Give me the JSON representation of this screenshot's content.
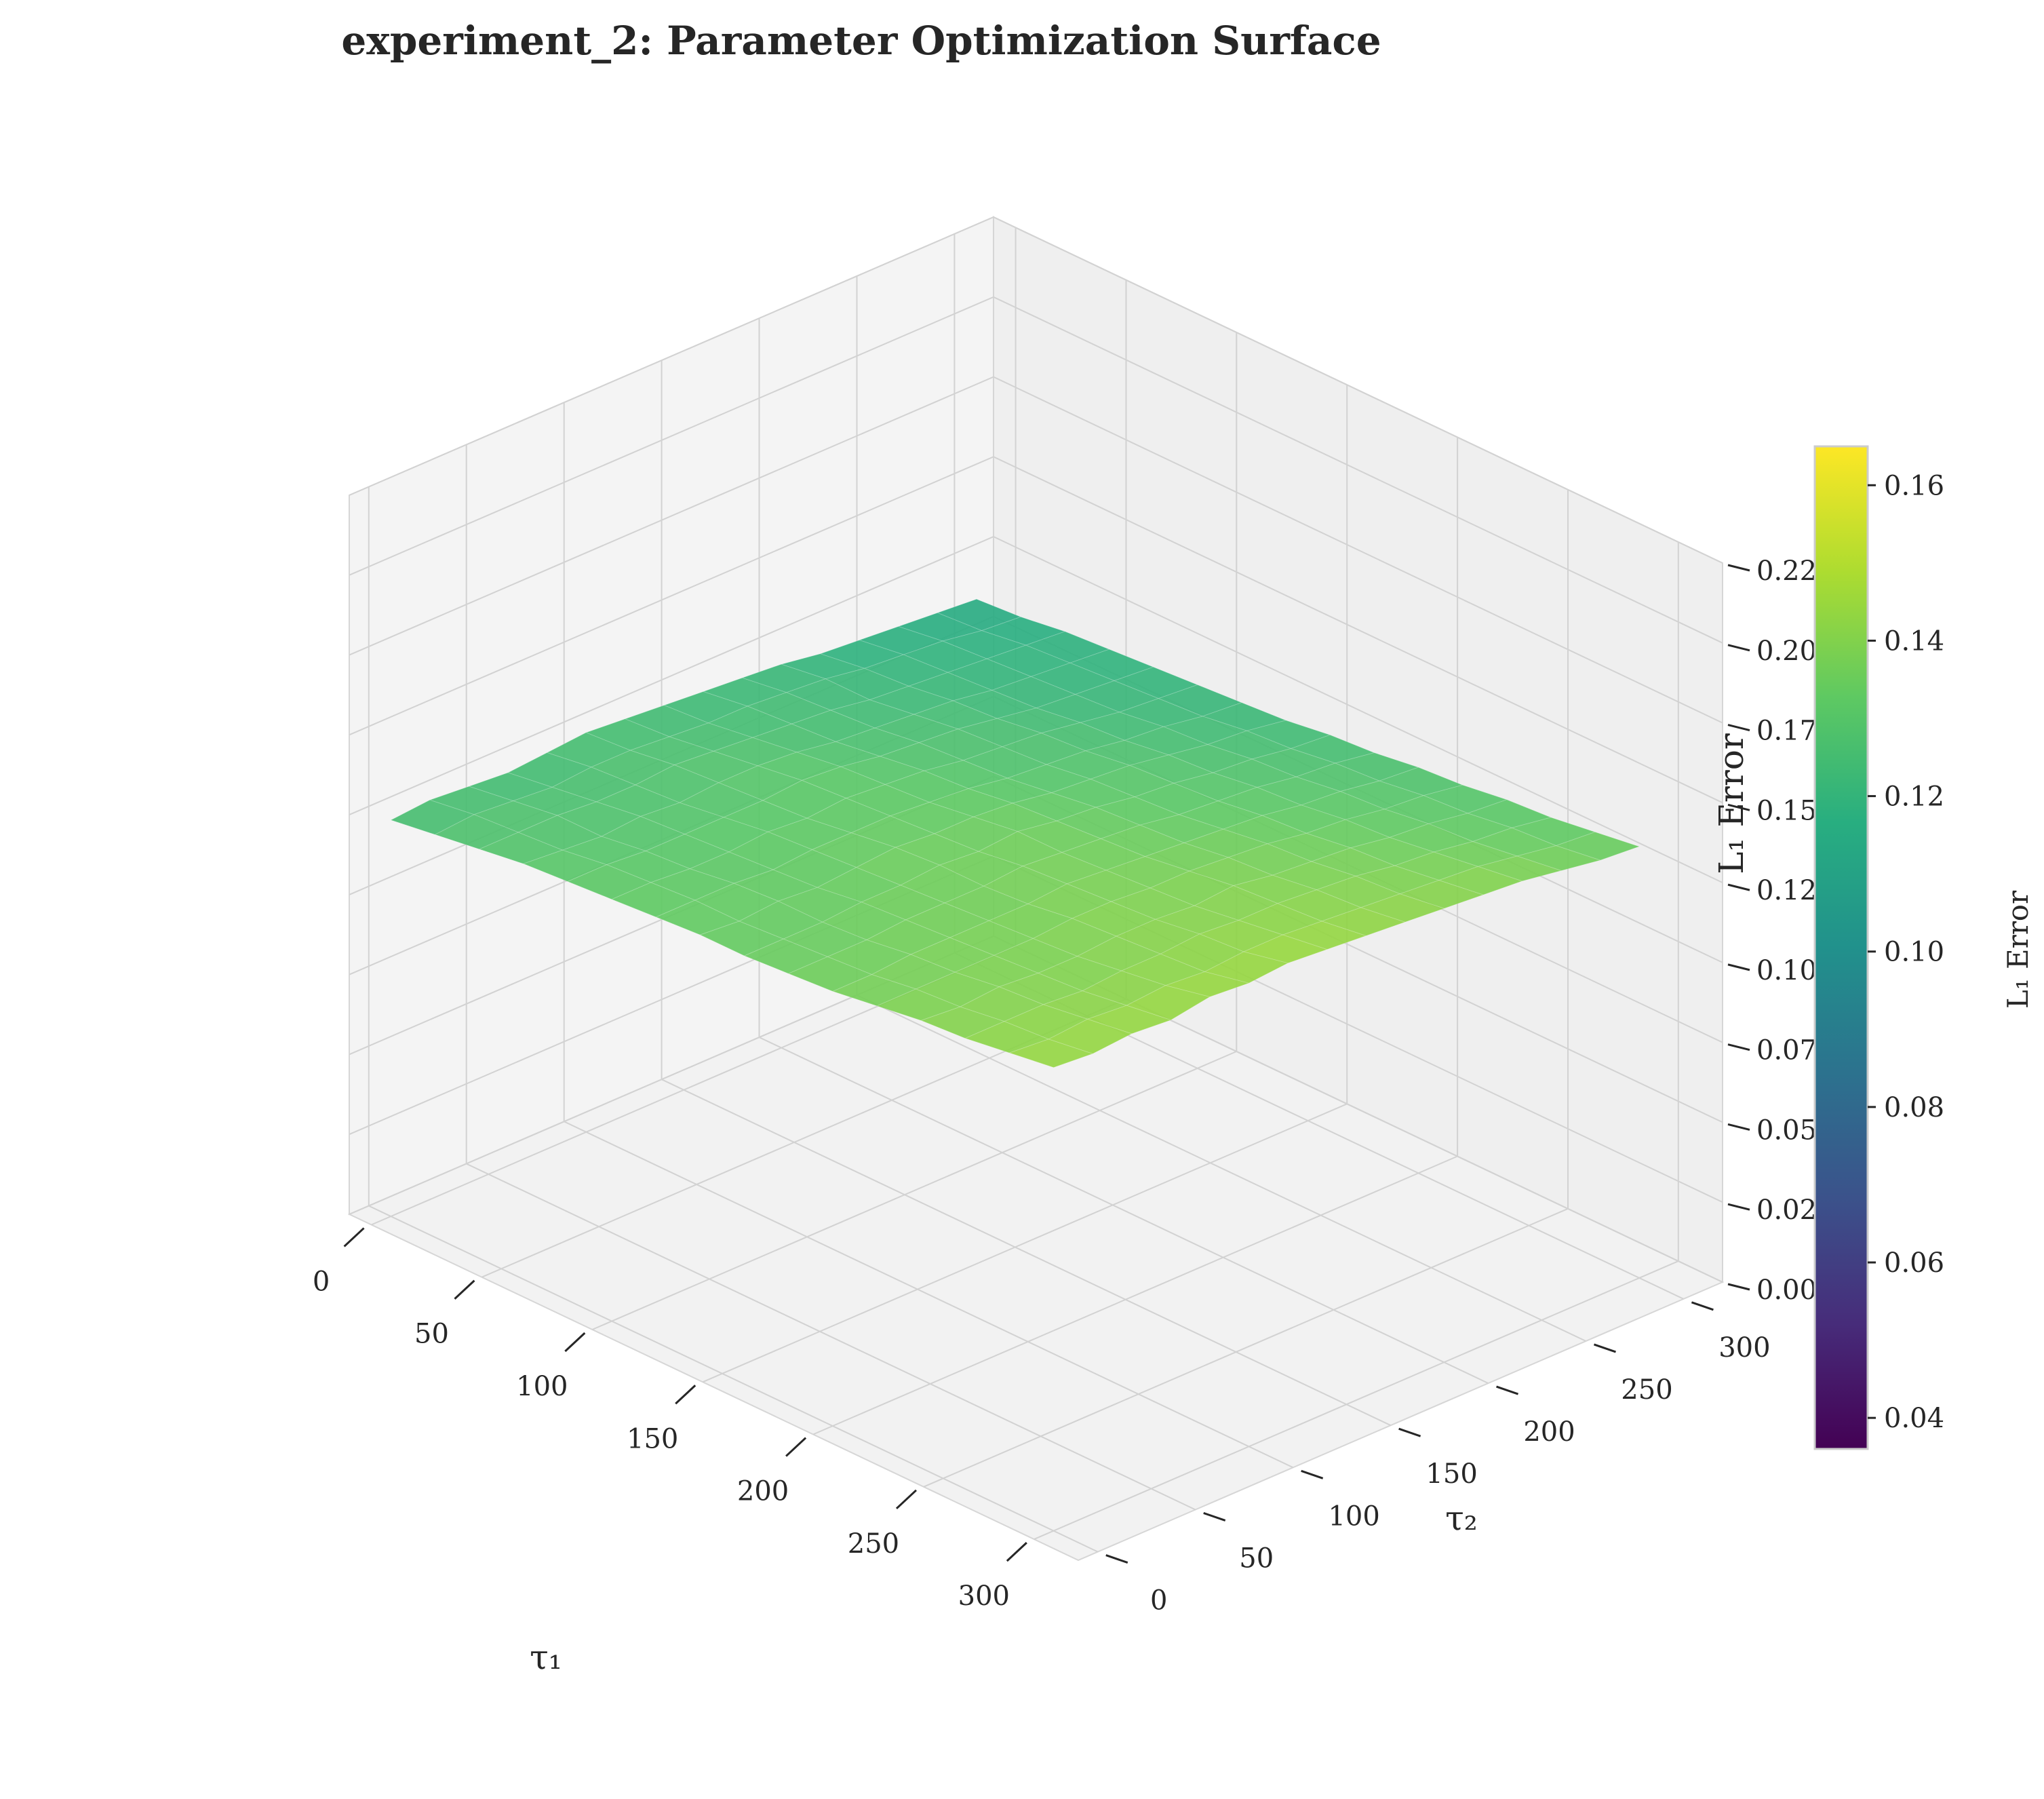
{
  "chart_data": {
    "type": "surface3d",
    "title": "experiment_2: Parameter Optimization Surface",
    "xlabel": "τ₁",
    "ylabel": "τ₂",
    "zlabel": "L₁ Error",
    "xlim": [
      -10,
      320
    ],
    "ylim": [
      -10,
      320
    ],
    "zlim": [
      0,
      0.225
    ],
    "x_ticks": [
      "0",
      "50",
      "100",
      "150",
      "200",
      "250",
      "300"
    ],
    "y_ticks": [
      "0",
      "50",
      "100",
      "150",
      "200",
      "250",
      "300"
    ],
    "z_ticks": [
      "0.000",
      "0.025",
      "0.050",
      "0.075",
      "0.100",
      "0.125",
      "0.150",
      "0.175",
      "0.200",
      "0.225"
    ],
    "colormap": "viridis",
    "colorbar": {
      "label": "L₁ Error",
      "range": [
        0.036,
        0.165
      ],
      "ticks": [
        "0.04",
        "0.06",
        "0.08",
        "0.10",
        "0.12",
        "0.14",
        "0.16"
      ]
    },
    "grid": true,
    "grid_x": [
      0,
      20,
      40,
      60,
      80,
      100,
      120,
      140,
      160,
      180,
      200,
      220,
      240,
      260,
      280,
      300
    ],
    "grid_y": [
      0,
      20,
      40,
      60,
      80,
      100,
      120,
      140,
      160,
      180,
      200,
      220,
      240,
      260,
      280,
      300
    ],
    "z_grid": [
      [
        0.124,
        0.126,
        0.128,
        0.13,
        0.131,
        0.132,
        0.133,
        0.134,
        0.134,
        0.135,
        0.136,
        0.138,
        0.14,
        0.141,
        0.143,
        0.145
      ],
      [
        0.125,
        0.127,
        0.128,
        0.129,
        0.131,
        0.132,
        0.133,
        0.133,
        0.134,
        0.135,
        0.136,
        0.138,
        0.139,
        0.141,
        0.142,
        0.144
      ],
      [
        0.124,
        0.126,
        0.128,
        0.128,
        0.13,
        0.131,
        0.133,
        0.134,
        0.134,
        0.135,
        0.137,
        0.138,
        0.14,
        0.141,
        0.143,
        0.145
      ],
      [
        0.123,
        0.125,
        0.127,
        0.129,
        0.13,
        0.131,
        0.132,
        0.133,
        0.135,
        0.136,
        0.137,
        0.138,
        0.139,
        0.14,
        0.142,
        0.144
      ],
      [
        0.124,
        0.126,
        0.127,
        0.128,
        0.13,
        0.132,
        0.133,
        0.134,
        0.135,
        0.136,
        0.137,
        0.138,
        0.139,
        0.141,
        0.143,
        0.146
      ],
      [
        0.125,
        0.126,
        0.128,
        0.129,
        0.13,
        0.131,
        0.133,
        0.135,
        0.136,
        0.136,
        0.137,
        0.139,
        0.14,
        0.141,
        0.142,
        0.145
      ],
      [
        0.124,
        0.125,
        0.127,
        0.129,
        0.131,
        0.132,
        0.133,
        0.134,
        0.135,
        0.137,
        0.138,
        0.139,
        0.14,
        0.142,
        0.143,
        0.146
      ],
      [
        0.123,
        0.124,
        0.126,
        0.128,
        0.13,
        0.131,
        0.132,
        0.134,
        0.136,
        0.136,
        0.137,
        0.138,
        0.139,
        0.141,
        0.143,
        0.145
      ],
      [
        0.122,
        0.124,
        0.125,
        0.126,
        0.128,
        0.13,
        0.131,
        0.133,
        0.134,
        0.135,
        0.136,
        0.138,
        0.14,
        0.141,
        0.142,
        0.144
      ],
      [
        0.121,
        0.123,
        0.124,
        0.125,
        0.127,
        0.128,
        0.129,
        0.131,
        0.133,
        0.134,
        0.135,
        0.137,
        0.138,
        0.14,
        0.141,
        0.143
      ],
      [
        0.12,
        0.122,
        0.122,
        0.124,
        0.126,
        0.127,
        0.128,
        0.13,
        0.131,
        0.132,
        0.134,
        0.136,
        0.137,
        0.139,
        0.14,
        0.142
      ],
      [
        0.118,
        0.12,
        0.121,
        0.123,
        0.124,
        0.126,
        0.127,
        0.129,
        0.13,
        0.131,
        0.133,
        0.134,
        0.136,
        0.137,
        0.139,
        0.141
      ],
      [
        0.117,
        0.119,
        0.12,
        0.121,
        0.122,
        0.124,
        0.125,
        0.127,
        0.128,
        0.13,
        0.131,
        0.133,
        0.134,
        0.136,
        0.138,
        0.14
      ],
      [
        0.116,
        0.118,
        0.119,
        0.12,
        0.121,
        0.122,
        0.124,
        0.125,
        0.127,
        0.128,
        0.13,
        0.131,
        0.133,
        0.134,
        0.136,
        0.138
      ],
      [
        0.115,
        0.116,
        0.118,
        0.119,
        0.12,
        0.121,
        0.122,
        0.124,
        0.125,
        0.127,
        0.128,
        0.13,
        0.131,
        0.133,
        0.134,
        0.136
      ],
      [
        0.114,
        0.115,
        0.117,
        0.118,
        0.119,
        0.12,
        0.121,
        0.122,
        0.124,
        0.125,
        0.127,
        0.128,
        0.13,
        0.131,
        0.133,
        0.135
      ]
    ]
  }
}
